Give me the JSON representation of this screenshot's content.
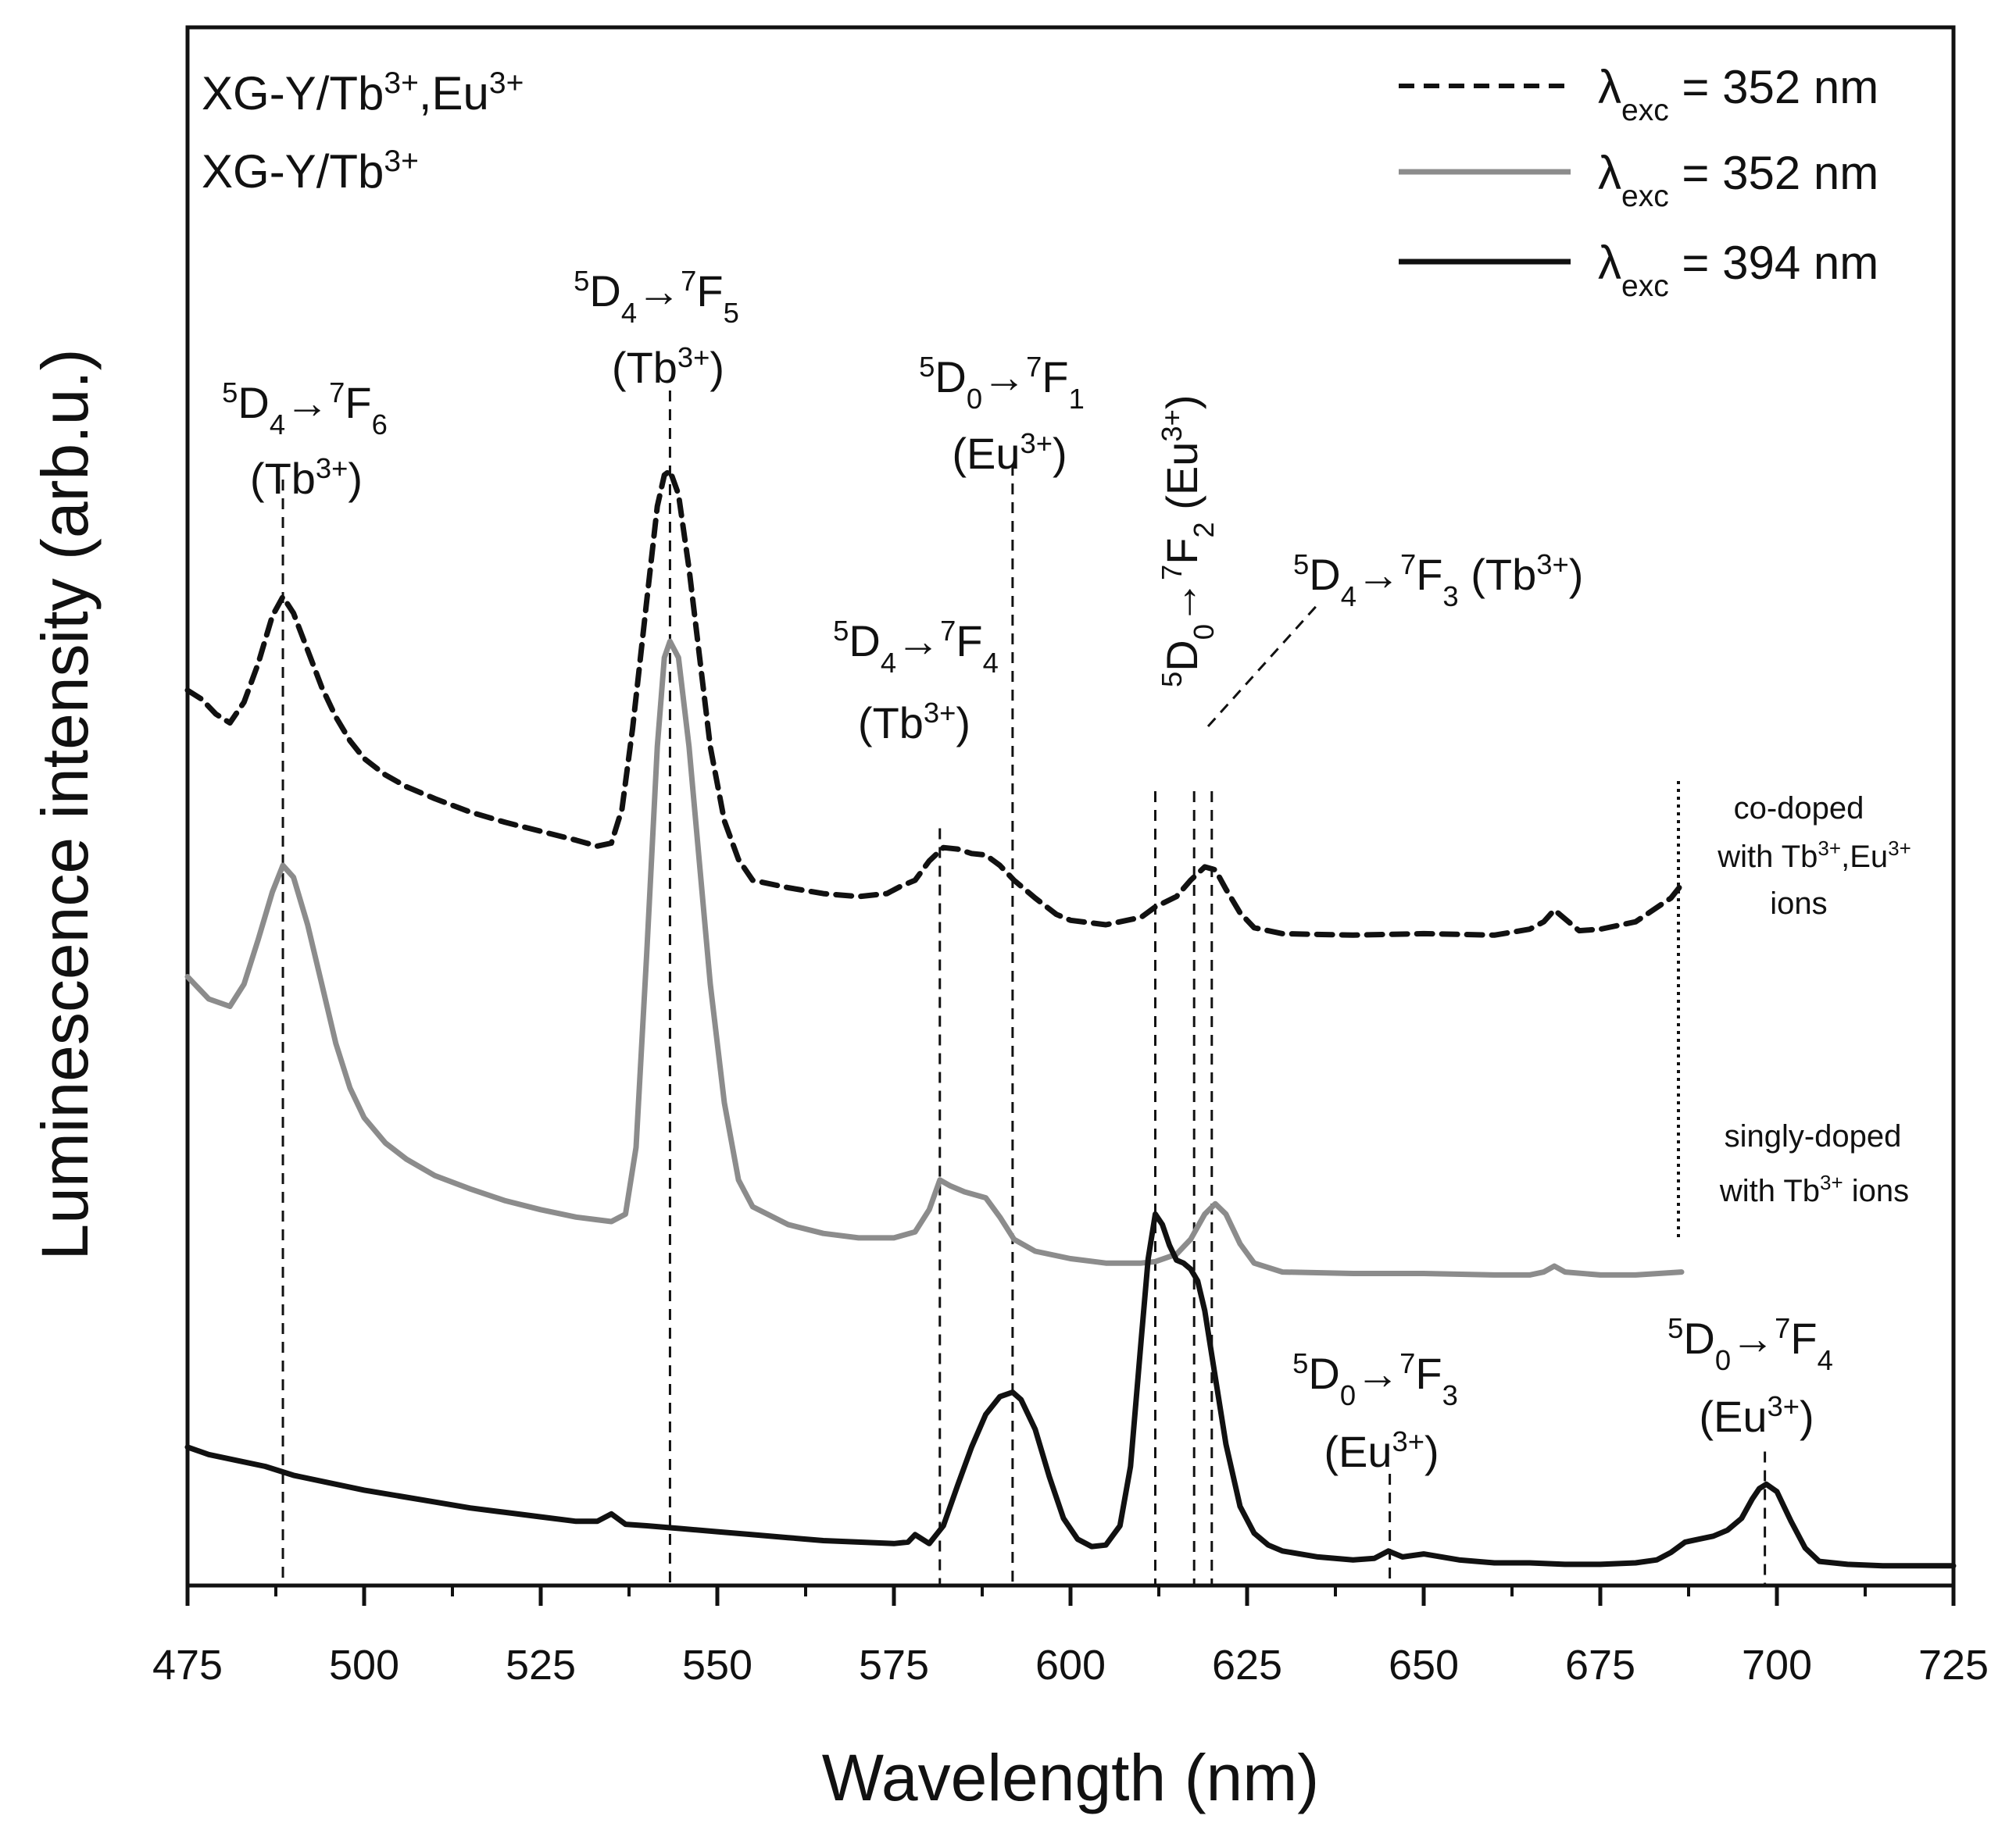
{
  "chart_data": {
    "type": "line",
    "xlabel": "Wavelength (nm)",
    "ylabel": "Luminescence intensity (arb.u.)",
    "xlim": [
      475,
      725
    ],
    "ylim": [
      0,
      1
    ],
    "xticks": [
      "475",
      "500",
      "525",
      "550",
      "575",
      "600",
      "625",
      "650",
      "675",
      "700",
      "725"
    ],
    "sample_labels": {
      "codoped": "XG-Y/Tb3+,Eu3+",
      "singly": "XG-Y/Tb3+"
    },
    "legend": [
      {
        "label": "λexc = 352 nm",
        "style": "dashed",
        "color": "#111111"
      },
      {
        "label": "λexc = 352 nm",
        "style": "solid",
        "color": "#8c8c8c"
      },
      {
        "label": "λexc = 394 nm",
        "style": "solid",
        "color": "#111111"
      }
    ],
    "series": [
      {
        "name": "co-doped with Tb3+,Eu3+ ions (λexc = 352 nm)",
        "style": "dashed",
        "color": "#111111",
        "x": [
          475,
          477,
          479,
          481,
          483,
          485,
          487,
          488.5,
          490,
          492,
          494,
          496,
          498,
          500,
          503,
          506,
          510,
          515,
          520,
          525,
          530,
          533,
          535,
          536.5,
          538,
          540,
          541.5,
          542.5,
          543.3,
          544.5,
          546,
          547.5,
          549,
          551,
          553,
          555,
          560,
          565,
          570,
          574,
          576,
          578,
          580,
          582,
          584,
          586,
          588,
          590,
          592,
          595,
          598,
          600,
          605,
          610,
          612,
          615,
          617,
          619,
          620.5,
          622,
          624,
          626,
          630,
          640,
          650,
          660,
          665,
          667,
          668.5,
          670,
          672,
          675,
          680,
          685,
          686.5
        ],
        "y": [
          0.598,
          0.592,
          0.582,
          0.576,
          0.59,
          0.616,
          0.648,
          0.661,
          0.65,
          0.625,
          0.6,
          0.58,
          0.564,
          0.552,
          0.541,
          0.533,
          0.525,
          0.516,
          0.509,
          0.503,
          0.497,
          0.493,
          0.495,
          0.518,
          0.572,
          0.658,
          0.722,
          0.743,
          0.746,
          0.73,
          0.68,
          0.62,
          0.56,
          0.51,
          0.484,
          0.47,
          0.465,
          0.461,
          0.459,
          0.461,
          0.466,
          0.47,
          0.483,
          0.492,
          0.491,
          0.488,
          0.487,
          0.48,
          0.47,
          0.458,
          0.447,
          0.443,
          0.44,
          0.445,
          0.452,
          0.459,
          0.47,
          0.479,
          0.477,
          0.464,
          0.448,
          0.438,
          0.434,
          0.433,
          0.434,
          0.433,
          0.437,
          0.442,
          0.45,
          0.444,
          0.436,
          0.437,
          0.442,
          0.458,
          0.467
        ]
      },
      {
        "name": "singly-doped with Tb3+ ions (λexc = 352 nm)",
        "style": "solid",
        "color": "#8c8c8c",
        "x": [
          475,
          478,
          481,
          483,
          485,
          487,
          488.5,
          490,
          492,
          494,
          496,
          498,
          500,
          503,
          506,
          510,
          515,
          520,
          525,
          530,
          535,
          537,
          538.5,
          540,
          541.5,
          542.5,
          543.3,
          544.5,
          546,
          547.5,
          549,
          551,
          553,
          555,
          560,
          565,
          570,
          575,
          578,
          580,
          581.5,
          583,
          585,
          588,
          590,
          592,
          595,
          600,
          605,
          610,
          612,
          615,
          617,
          619,
          620.5,
          622,
          624,
          626,
          630,
          640,
          650,
          660,
          665,
          667,
          668.5,
          670,
          675,
          680,
          686.5
        ],
        "y": [
          0.405,
          0.39,
          0.385,
          0.4,
          0.43,
          0.462,
          0.48,
          0.472,
          0.44,
          0.4,
          0.36,
          0.33,
          0.31,
          0.293,
          0.282,
          0.271,
          0.262,
          0.254,
          0.248,
          0.243,
          0.24,
          0.245,
          0.29,
          0.42,
          0.56,
          0.62,
          0.631,
          0.62,
          0.56,
          0.48,
          0.4,
          0.32,
          0.268,
          0.25,
          0.238,
          0.232,
          0.229,
          0.229,
          0.233,
          0.248,
          0.268,
          0.264,
          0.26,
          0.256,
          0.243,
          0.228,
          0.22,
          0.215,
          0.212,
          0.212,
          0.213,
          0.218,
          0.228,
          0.245,
          0.252,
          0.245,
          0.225,
          0.212,
          0.206,
          0.205,
          0.205,
          0.204,
          0.204,
          0.206,
          0.21,
          0.206,
          0.204,
          0.204,
          0.206
        ]
      },
      {
        "name": "λexc = 394 nm",
        "style": "solid",
        "color": "#111111",
        "x": [
          475,
          478,
          482,
          486,
          490,
          495,
          500,
          505,
          510,
          515,
          520,
          525,
          530,
          533,
          535,
          537,
          540,
          545,
          550,
          555,
          560,
          565,
          570,
          575,
          577,
          578,
          579,
          580,
          582,
          584,
          586,
          588,
          590,
          591.8,
          593,
          595,
          597,
          599,
          601,
          603,
          605,
          607,
          608.5,
          610,
          611,
          612,
          613,
          614,
          615,
          616,
          617,
          618,
          619,
          620,
          622,
          624,
          626,
          628,
          630,
          635,
          640,
          643,
          645,
          647,
          650,
          655,
          660,
          665,
          670,
          675,
          680,
          683,
          685,
          687,
          689,
          691,
          693,
          695,
          696.5,
          697.5,
          698.5,
          700,
          702,
          704,
          706,
          710,
          715,
          720,
          725
        ],
        "y": [
          0.088,
          0.083,
          0.079,
          0.075,
          0.069,
          0.064,
          0.059,
          0.055,
          0.051,
          0.047,
          0.044,
          0.041,
          0.038,
          0.038,
          0.043,
          0.036,
          0.035,
          0.033,
          0.031,
          0.029,
          0.027,
          0.025,
          0.024,
          0.023,
          0.024,
          0.029,
          0.026,
          0.023,
          0.035,
          0.062,
          0.088,
          0.11,
          0.122,
          0.125,
          0.12,
          0.1,
          0.068,
          0.04,
          0.026,
          0.021,
          0.022,
          0.035,
          0.075,
          0.16,
          0.215,
          0.245,
          0.238,
          0.224,
          0.214,
          0.212,
          0.208,
          0.2,
          0.18,
          0.15,
          0.09,
          0.048,
          0.03,
          0.022,
          0.018,
          0.014,
          0.012,
          0.013,
          0.018,
          0.014,
          0.016,
          0.012,
          0.01,
          0.01,
          0.009,
          0.009,
          0.01,
          0.012,
          0.017,
          0.024,
          0.026,
          0.028,
          0.032,
          0.04,
          0.053,
          0.06,
          0.063,
          0.058,
          0.038,
          0.02,
          0.011,
          0.009,
          0.008,
          0.008,
          0.008
        ]
      }
    ],
    "transition_lines": [
      {
        "x": 488.5,
        "y_top": 0.74
      },
      {
        "x": 543.3,
        "y_top": 0.8
      },
      {
        "x": 581.5,
        "y_top": 0.505
      },
      {
        "x": 591.8,
        "y_top": 0.75
      },
      {
        "x": 612.0,
        "y_top": 0.53
      },
      {
        "x": 617.5,
        "y_top": 0.53
      },
      {
        "x": 620.0,
        "y_top": 0.53
      },
      {
        "x": 645.2,
        "y_top": 0.07
      },
      {
        "x": 698.3,
        "y_top": 0.085
      }
    ],
    "annotations": [
      {
        "id": "tb-7f6",
        "upper": "5",
        "main1": "D",
        "sub1": "4",
        "arrow": "→",
        "upper2": "7",
        "main2": "F",
        "sub2": "6",
        "ion": "(Tb3+)"
      },
      {
        "id": "tb-7f5",
        "upper": "5",
        "main1": "D",
        "sub1": "4",
        "arrow": "→",
        "upper2": "7",
        "main2": "F",
        "sub2": "5",
        "ion": "(Tb3+)"
      },
      {
        "id": "eu-7f1",
        "upper": "5",
        "main1": "D",
        "sub1": "0",
        "arrow": "→",
        "upper2": "7",
        "main2": "F",
        "sub2": "1",
        "ion": "(Eu3+)"
      },
      {
        "id": "tb-7f4",
        "upper": "5",
        "main1": "D",
        "sub1": "4",
        "arrow": "→",
        "upper2": "7",
        "main2": "F",
        "sub2": "4",
        "ion": "(Tb3+)"
      },
      {
        "id": "eu-7f2",
        "upper": "5",
        "main1": "D",
        "sub1": "0",
        "arrow": "→",
        "upper2": "7",
        "main2": "F",
        "sub2": "2",
        "ion": "(Eu3+)"
      },
      {
        "id": "tb-7f3",
        "upper": "5",
        "main1": "D",
        "sub1": "4",
        "arrow": "→",
        "upper2": "7",
        "main2": "F",
        "sub2": "3",
        "ion": "(Tb3+)"
      },
      {
        "id": "eu-7f3",
        "upper": "5",
        "main1": "D",
        "sub1": "0",
        "arrow": "→",
        "upper2": "7",
        "main2": "F",
        "sub2": "3",
        "ion": "(Eu3+)"
      },
      {
        "id": "eu-7f4",
        "upper": "5",
        "main1": "D",
        "sub1": "0",
        "arrow": "→",
        "upper2": "7",
        "main2": "F",
        "sub2": "4",
        "ion": "(Eu3+)"
      }
    ],
    "side_labels": {
      "codoped": [
        "co-doped",
        "with Tb3+,Eu3+",
        "ions"
      ],
      "singly": [
        "singly-doped",
        "with Tb3+ ions"
      ]
    }
  }
}
